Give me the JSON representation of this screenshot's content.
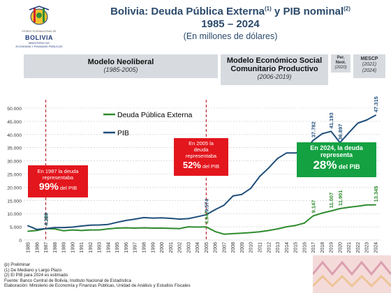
{
  "header": {
    "title_main": "Bolivia: Deuda Pública Externa",
    "title_sup1": "(1)",
    "title_mid": " y PIB nominal",
    "title_sup2": "(2)",
    "title_years": "1985 – 2024",
    "title_units": "(En millones de dólares)"
  },
  "logo": {
    "state_text": "ESTADO PLURINACIONAL DE",
    "name": "BOLIVIA",
    "ministry_line1": "MINISTERIO DE",
    "ministry_line2": "ECONOMÍA Y FINANZAS PÚBLICAS"
  },
  "periods": [
    {
      "label": "Modelo Neoliberal",
      "years": "(1985-2005)"
    },
    {
      "label_line1": "Modelo Económico Social",
      "label_line2": "Comunitario Productivo",
      "years": "(2006-2019)"
    },
    {
      "label_line1": "Per.",
      "label_line2": "Neol.",
      "years": "(2020)"
    },
    {
      "label": "MESCP",
      "years_line1": "(2021)",
      "years_line2": "(2024)"
    }
  ],
  "callouts": {
    "c1987": {
      "line1": "En 1987 la deuda",
      "line2": "representaba",
      "pct": "99%",
      "suffix": " del PIB"
    },
    "c2005": {
      "line1": "En 2005 la",
      "line2": "deuda",
      "line3": "representaba",
      "pct": "52%",
      "suffix": " del PIB"
    },
    "c2024": {
      "line1": "En 2024, la deuda",
      "line2": "representa",
      "pct": "28%",
      "suffix": " del PIB"
    }
  },
  "notes": {
    "line1": "(p) Preliminar",
    "line2": "(1) De Mediano y Largo Plazo",
    "line3": "(2) El PIB  para 2024 es estimado",
    "line4": "Fuente: Banco Central de Bolivia, Instituto Nacional de Estadística",
    "line5": "Elaboración: Ministerio de Economía  y Finanzas Públicas, Unidad de Análisis y Estudios Fiscales"
  },
  "colors": {
    "pib": "#1f4e79",
    "debt": "#2e8b2e",
    "callout_red": "#e3161d",
    "callout_green": "#14a142",
    "header_blue": "#2b4a6b",
    "period_bg": "#d7dbe0"
  },
  "chart_data": {
    "type": "line",
    "xlabel": "",
    "ylabel": "",
    "ylim": [
      0,
      50000
    ],
    "yticks": [
      "0",
      "5.000",
      "10.000",
      "15.000",
      "20.000",
      "25.000",
      "30.000",
      "35.000",
      "40.000",
      "45.000",
      "50.000"
    ],
    "grid": "horizontal, dotted",
    "legend": "top-left",
    "categories": [
      "1985",
      "1986",
      "1987",
      "1988",
      "1989",
      "1990",
      "1991",
      "1992",
      "1993",
      "1994",
      "1995",
      "1996",
      "1997",
      "1998",
      "1999",
      "2000",
      "2001",
      "2002",
      "2003",
      "2004",
      "2005",
      "2006",
      "2007",
      "2008",
      "2009",
      "2010",
      "2011",
      "2012",
      "2013",
      "2014",
      "2015",
      "2016",
      "2017",
      "2018",
      "2019",
      "2020",
      "2021",
      "2022",
      "2023",
      "2024"
    ],
    "series": [
      {
        "name": "Deuda Pública Externa",
        "color": "#2e8b2e",
        "values": [
          3300,
          3600,
          4289,
          4200,
          3500,
          3800,
          3600,
          3800,
          3800,
          4200,
          4500,
          4600,
          4500,
          4600,
          4500,
          4500,
          4400,
          4300,
          5000,
          4900,
          4947,
          3200,
          2200,
          2400,
          2600,
          2800,
          3100,
          3600,
          4200,
          5000,
          5500,
          6400,
          9147,
          10200,
          11007,
          11901,
          12400,
          12800,
          13300,
          13345
        ]
      },
      {
        "name": "PIB",
        "color": "#1f4e79",
        "values": [
          5400,
          4000,
          4320,
          4700,
          4700,
          4900,
          5300,
          5600,
          5700,
          5900,
          6700,
          7400,
          7900,
          8500,
          8300,
          8400,
          8200,
          7900,
          8100,
          8800,
          9574,
          11500,
          13200,
          16700,
          17300,
          19600,
          24100,
          27300,
          30900,
          33000,
          33000,
          33900,
          37782,
          40300,
          41193,
          36897,
          40700,
          44300,
          45500,
          47315
        ]
      }
    ],
    "data_labels": [
      {
        "series": "Deuda Pública Externa",
        "x": "1987",
        "text": "4.289"
      },
      {
        "series": "PIB",
        "x": "1987",
        "text": "4.320"
      },
      {
        "series": "Deuda Pública Externa",
        "x": "2005",
        "text": "4.947"
      },
      {
        "series": "PIB",
        "x": "2005",
        "text": "9.574"
      },
      {
        "series": "Deuda Pública Externa",
        "x": "2017",
        "text": "9.147"
      },
      {
        "series": "Deuda Pública Externa",
        "x": "2019",
        "text": "11.007"
      },
      {
        "series": "Deuda Pública Externa",
        "x": "2020",
        "text": "11.901"
      },
      {
        "series": "Deuda Pública Externa",
        "x": "2024",
        "text": "13.345"
      },
      {
        "series": "PIB",
        "x": "2017",
        "text": "37.782"
      },
      {
        "series": "PIB",
        "x": "2019",
        "text": "41.193"
      },
      {
        "series": "PIB",
        "x": "2020",
        "text": "36.897"
      },
      {
        "series": "PIB",
        "x": "2024",
        "text": "47.315"
      }
    ],
    "vertical_markers": [
      "1987",
      "2005"
    ]
  }
}
